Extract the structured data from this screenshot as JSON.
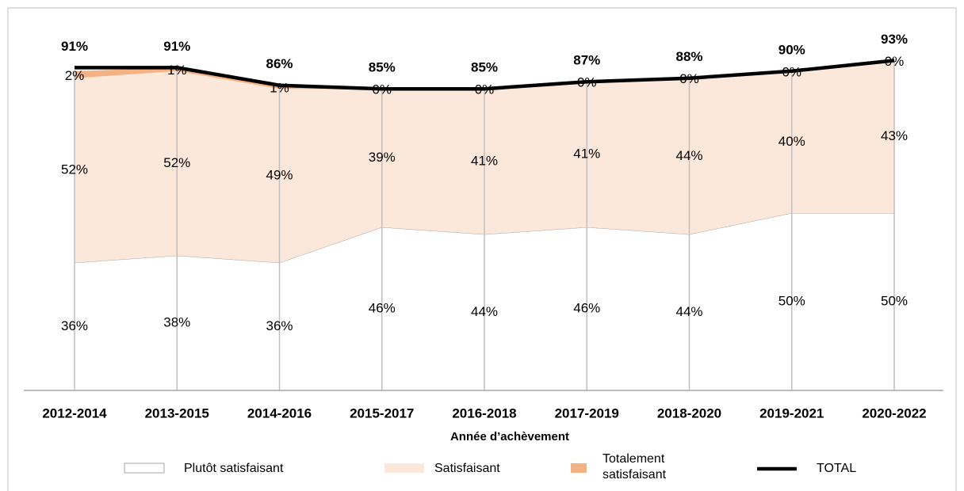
{
  "chart_data": {
    "type": "stacked_area",
    "x_label": "Année d’achèvement",
    "categories": [
      "2012-2014",
      "2013-2015",
      "2014-2016",
      "2015-2017",
      "2016-2018",
      "2017-2019",
      "2018-2020",
      "2019-2021",
      "2020-2022"
    ],
    "series": [
      {
        "name": "Plutôt satisfaisant",
        "color": "#ffffff",
        "values": [
          36,
          38,
          36,
          46,
          44,
          46,
          44,
          50,
          50
        ],
        "value_labels": [
          "36%",
          "38%",
          "36%",
          "46%",
          "44%",
          "46%",
          "44%",
          "50%",
          "50%"
        ]
      },
      {
        "name": "Satisfaisant",
        "color": "#fce8da",
        "values": [
          52,
          52,
          49,
          39,
          41,
          41,
          44,
          40,
          43
        ],
        "value_labels": [
          "52%",
          "52%",
          "49%",
          "39%",
          "41%",
          "41%",
          "44%",
          "40%",
          "43%"
        ]
      },
      {
        "name": "Totalement satisfaisant",
        "color": "#f4b183",
        "values": [
          2,
          1,
          1,
          0,
          0,
          0,
          0,
          0,
          0
        ],
        "value_labels": [
          "2%",
          "1%",
          "1%",
          "0%",
          "0%",
          "0%",
          "0%",
          "0%",
          "0%"
        ]
      },
      {
        "name": "TOTAL",
        "color": "#000000",
        "line": true,
        "values": [
          91,
          91,
          86,
          85,
          85,
          87,
          88,
          90,
          93
        ],
        "value_labels": [
          "91%",
          "91%",
          "86%",
          "85%",
          "85%",
          "87%",
          "88%",
          "90%",
          "93%"
        ]
      }
    ],
    "ylim": [
      0,
      100
    ]
  }
}
